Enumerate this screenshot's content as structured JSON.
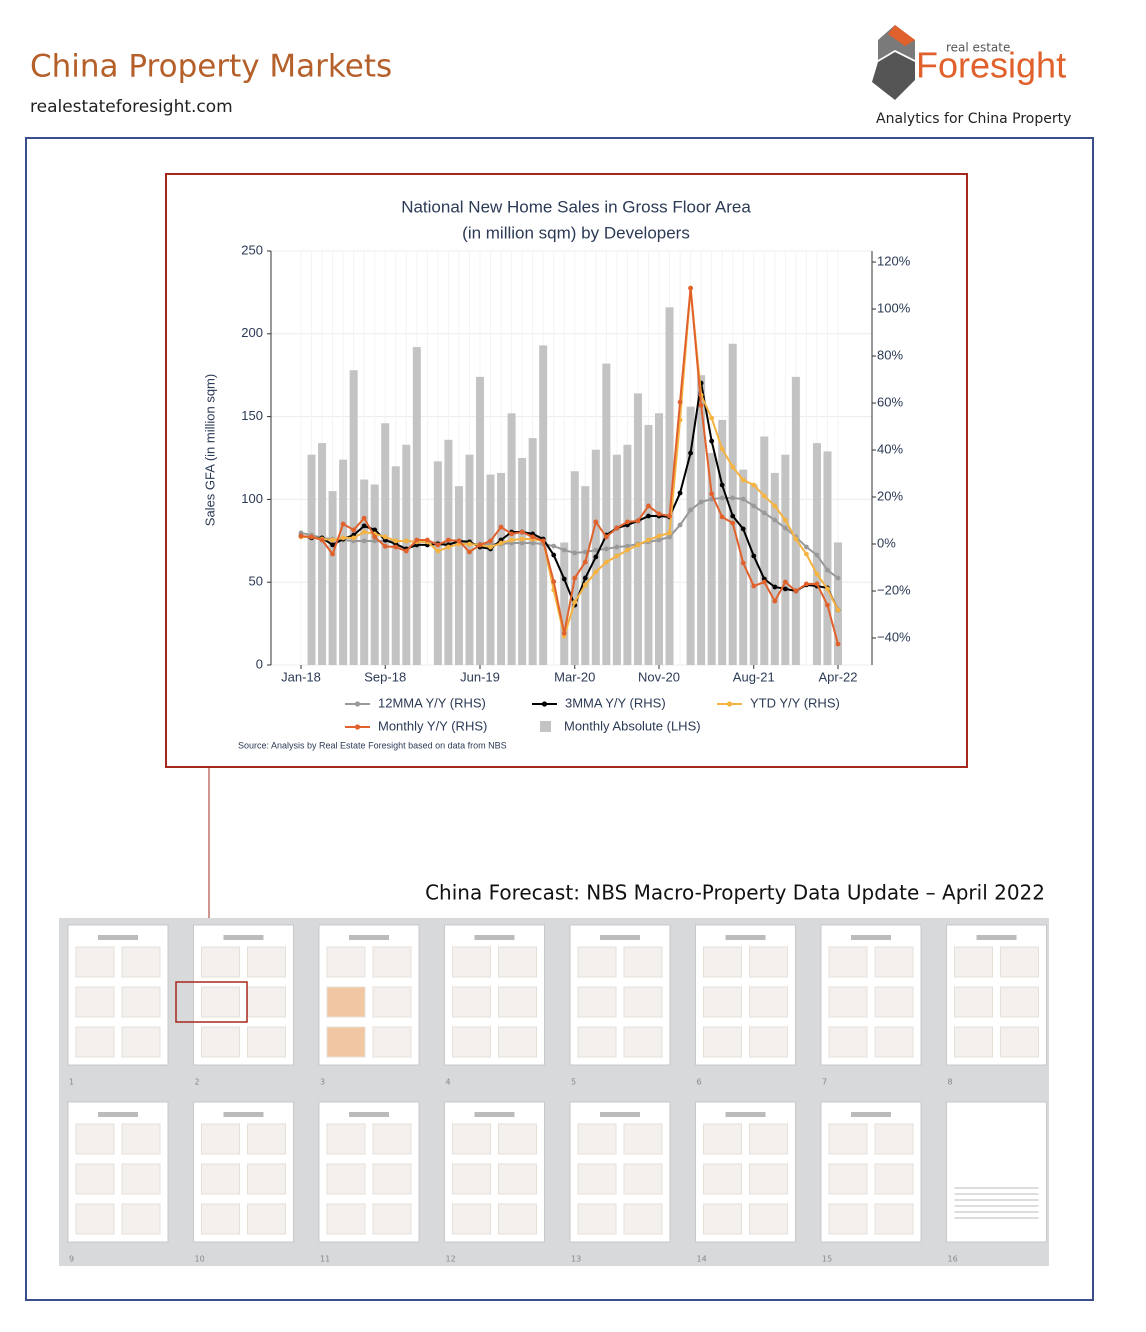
{
  "header": {
    "title": "China Property Markets",
    "website": "realestateforesight.com",
    "logo_small": "real estate",
    "logo_large": "Foresight",
    "tagline": "Analytics for China Property"
  },
  "chart_data": {
    "type": "combo",
    "title": [
      "National New Home Sales in Gross Floor Area",
      "(in million sqm) by Developers"
    ],
    "y_label": "Sales GFA (in million sqm)",
    "source": "Source: Analysis by Real Estate Foresight based on data from NBS",
    "categories": [
      "Jan-18",
      null,
      null,
      null,
      null,
      null,
      null,
      null,
      "Sep-18",
      null,
      null,
      null,
      null,
      null,
      null,
      null,
      null,
      "Jun-19",
      null,
      null,
      null,
      null,
      null,
      null,
      null,
      null,
      "Mar-20",
      null,
      null,
      null,
      null,
      null,
      null,
      null,
      "Nov-20",
      null,
      null,
      null,
      null,
      null,
      null,
      null,
      null,
      "Aug-21",
      null,
      null,
      null,
      null,
      null,
      null,
      null,
      "Apr-22"
    ],
    "ylim": [
      0,
      250
    ],
    "yticks": [
      0,
      50,
      100,
      150,
      200,
      250
    ],
    "y2lim": [
      -51.5,
      124.7
    ],
    "y2ticks": [
      {
        "value": 120,
        "label": "120%"
      },
      {
        "value": 100,
        "label": "100%"
      },
      {
        "value": 80,
        "label": "80%"
      },
      {
        "value": 60,
        "label": "60%"
      },
      {
        "value": 40,
        "label": "40%"
      },
      {
        "value": 20,
        "label": "20%"
      },
      {
        "value": 0,
        "label": "0%"
      },
      {
        "value": -20,
        "label": "−20%"
      },
      {
        "value": -40,
        "label": "−40%"
      }
    ],
    "grid": true,
    "series": [
      {
        "name": "12MMA Y/Y (RHS)",
        "type": "line",
        "axis": "y2",
        "color": "#999999",
        "values": [
          4.7,
          3.8,
          2.6,
          2.1,
          1.7,
          1.3,
          1.3,
          1.3,
          1.3,
          1.3,
          1.3,
          0.9,
          0.9,
          0.4,
          0.4,
          0.4,
          0,
          0,
          0,
          0,
          0.4,
          0.4,
          0.4,
          0,
          -0.9,
          -2.6,
          -3.8,
          -3.4,
          -2.6,
          -2.1,
          -1.3,
          -0.9,
          0,
          0.9,
          1.7,
          3,
          8.1,
          14.5,
          17.9,
          19.1,
          19.6,
          19.6,
          19.1,
          16.2,
          13.2,
          10.2,
          6.8,
          3,
          -1.3,
          -4.7,
          -11.1,
          -14.5
        ]
      },
      {
        "name": "3MMA Y/Y (RHS)",
        "type": "line",
        "axis": "y2",
        "color": "#000000",
        "values": [
          3.4,
          2.6,
          2.6,
          -0.4,
          2.1,
          3.8,
          7.7,
          6,
          1.7,
          0,
          -2.1,
          -0.4,
          -0.4,
          0,
          -0.4,
          1.3,
          0.9,
          -1.3,
          -2.1,
          1.7,
          5.1,
          5.1,
          4.3,
          2.1,
          -4.7,
          -14.9,
          -26,
          -14.5,
          -5.5,
          3.8,
          6.8,
          8.1,
          9.8,
          11.9,
          11.9,
          11.5,
          21.7,
          38.7,
          68.5,
          43.8,
          25.1,
          11.9,
          6.4,
          -5.1,
          -14.9,
          -18.3,
          -19.1,
          -20,
          -17.4,
          -17.9,
          -18.7,
          -28.1
        ]
      },
      {
        "name": "YTD Y/Y (RHS)",
        "type": "line",
        "axis": "y2",
        "color": "#f5b342",
        "values": [
          3,
          3,
          2.1,
          1.7,
          2.6,
          2.6,
          5.1,
          4.3,
          3,
          1.3,
          1.3,
          0.9,
          0.9,
          -3,
          -1.3,
          0,
          0,
          -0.4,
          -1.3,
          0.4,
          1.7,
          2.1,
          2.1,
          1.3,
          -19.6,
          -39.1,
          -24.7,
          -17.4,
          -11.9,
          -7.7,
          -5.1,
          -2.6,
          -0.4,
          1.7,
          3.4,
          4.7,
          52.8,
          108.9,
          63.4,
          53.6,
          40.4,
          32.8,
          27.2,
          25.1,
          20.4,
          16.2,
          10.2,
          2.1,
          -4.3,
          -12.8,
          -19.1,
          -28.1
        ]
      },
      {
        "name": "Monthly Y/Y (RHS)",
        "type": "line",
        "axis": "y2",
        "color": "#e0612c",
        "values": [
          3.4,
          3,
          1.7,
          -4.3,
          8.5,
          6,
          11,
          3,
          -1,
          -1.3,
          -3,
          1.7,
          1.7,
          -0.4,
          1.7,
          1.3,
          -3.4,
          -0.4,
          1.3,
          7.2,
          4.3,
          5.1,
          3,
          1.3,
          -16,
          -38,
          -14.5,
          -7.7,
          9.4,
          3,
          6.8,
          9.4,
          9.8,
          16.2,
          12.8,
          11.9,
          60.4,
          108.9,
          59,
          21.3,
          11.5,
          8.9,
          -8.1,
          -17.9,
          -16.2,
          -24.3,
          -16.2,
          -20,
          -17,
          -17,
          -26,
          -42.6
        ]
      },
      {
        "name": "Monthly Absolute (LHS)",
        "type": "bar",
        "axis": "y",
        "color": "#c3c3c3",
        "values": [
          null,
          127,
          134,
          105,
          124,
          178,
          112,
          109,
          146,
          120,
          133,
          192,
          null,
          123,
          136,
          108,
          127,
          174,
          115,
          116,
          152,
          125,
          137,
          193,
          null,
          74,
          117,
          108,
          130,
          182,
          127,
          133,
          164,
          145,
          152,
          216,
          null,
          156,
          175,
          128,
          148,
          194,
          118,
          109,
          138,
          116,
          127,
          174,
          null,
          134,
          129,
          74
        ]
      }
    ]
  },
  "caption": "China Forecast: NBS Macro-Property Data Update – April 2022",
  "thumbnails": {
    "pages": [
      "1",
      "2",
      "3",
      "4",
      "5",
      "6",
      "7",
      "8",
      "9",
      "10",
      "11",
      "12",
      "13",
      "14",
      "15",
      "16"
    ]
  }
}
